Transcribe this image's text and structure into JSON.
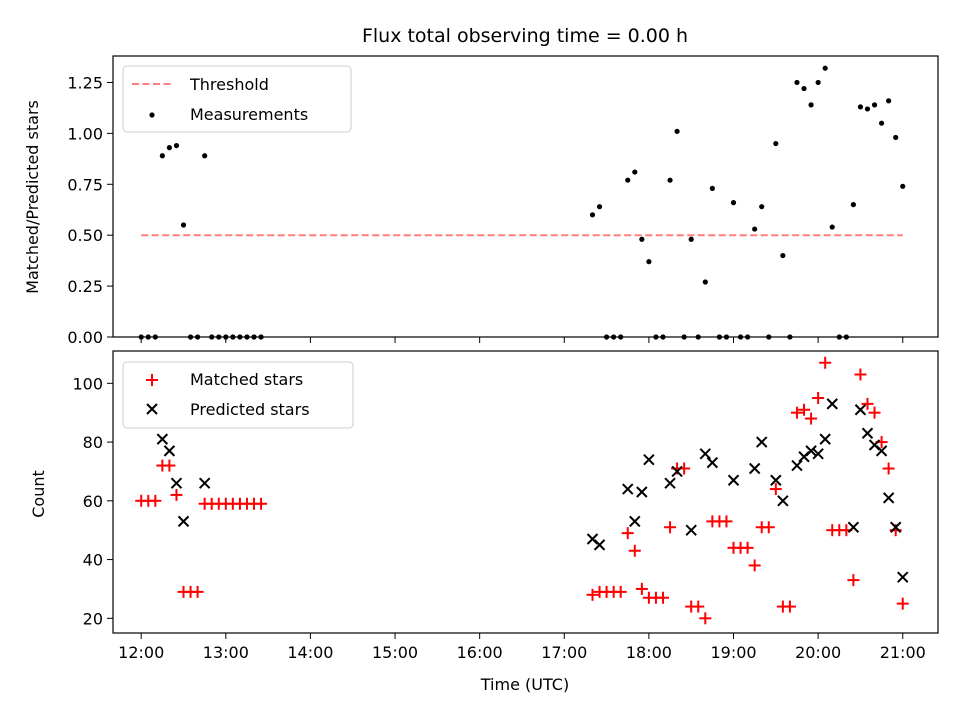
{
  "chart_data": [
    {
      "type": "scatter",
      "title": "Flux total observing time = 0.00 h",
      "xlabel": "",
      "ylabel": "Matched/Predicted stars",
      "xlim": [
        "11:40",
        "21:25"
      ],
      "ylim": [
        0,
        1.38
      ],
      "yticks": [
        "0.00",
        "0.25",
        "0.50",
        "0.75",
        "1.00",
        "1.25"
      ],
      "legend": {
        "placement": "top-left",
        "entries": [
          "Threshold",
          "Measurements"
        ]
      },
      "threshold": {
        "name": "Threshold",
        "value": 0.5,
        "x": [
          "12:00",
          "21:00"
        ],
        "color": "#ff7f7f",
        "style": "dashed"
      },
      "series": [
        {
          "name": "Measurements",
          "color": "#000000",
          "marker": "dot",
          "points": [
            [
              "12:00",
              0
            ],
            [
              "12:05",
              0
            ],
            [
              "12:10",
              0
            ],
            [
              "12:15",
              0.89
            ],
            [
              "12:20",
              0.93
            ],
            [
              "12:25",
              0.94
            ],
            [
              "12:30",
              0.55
            ],
            [
              "12:35",
              0
            ],
            [
              "12:40",
              0
            ],
            [
              "12:45",
              0.89
            ],
            [
              "12:50",
              0
            ],
            [
              "12:55",
              0
            ],
            [
              "13:00",
              0
            ],
            [
              "13:05",
              0
            ],
            [
              "13:10",
              0
            ],
            [
              "13:15",
              0
            ],
            [
              "13:20",
              0
            ],
            [
              "13:25",
              0
            ],
            [
              "17:20",
              0.6
            ],
            [
              "17:25",
              0.64
            ],
            [
              "17:30",
              0
            ],
            [
              "17:35",
              0
            ],
            [
              "17:40",
              0
            ],
            [
              "17:45",
              0.77
            ],
            [
              "17:50",
              0.81
            ],
            [
              "17:55",
              0.48
            ],
            [
              "18:00",
              0.37
            ],
            [
              "18:05",
              0
            ],
            [
              "18:10",
              0
            ],
            [
              "18:15",
              0.77
            ],
            [
              "18:20",
              1.01
            ],
            [
              "18:25",
              0
            ],
            [
              "18:30",
              0.48
            ],
            [
              "18:35",
              0
            ],
            [
              "18:40",
              0.27
            ],
            [
              "18:45",
              0.73
            ],
            [
              "18:50",
              0
            ],
            [
              "18:55",
              0
            ],
            [
              "19:00",
              0.66
            ],
            [
              "19:05",
              0
            ],
            [
              "19:10",
              0
            ],
            [
              "19:15",
              0.53
            ],
            [
              "19:20",
              0.64
            ],
            [
              "19:25",
              0
            ],
            [
              "19:30",
              0.95
            ],
            [
              "19:35",
              0.4
            ],
            [
              "19:40",
              0
            ],
            [
              "19:45",
              1.25
            ],
            [
              "19:50",
              1.22
            ],
            [
              "19:55",
              1.14
            ],
            [
              "20:00",
              1.25
            ],
            [
              "20:05",
              1.32
            ],
            [
              "20:10",
              0.54
            ],
            [
              "20:15",
              0
            ],
            [
              "20:20",
              0
            ],
            [
              "20:25",
              0.65
            ],
            [
              "20:30",
              1.13
            ],
            [
              "20:35",
              1.12
            ],
            [
              "20:40",
              1.14
            ],
            [
              "20:45",
              1.05
            ],
            [
              "20:50",
              1.16
            ],
            [
              "20:55",
              0.98
            ],
            [
              "21:00",
              0.74
            ]
          ]
        }
      ]
    },
    {
      "type": "scatter",
      "title": "",
      "xlabel": "Time (UTC)",
      "ylabel": "Count",
      "xlim": [
        "11:40",
        "21:25"
      ],
      "ylim": [
        15,
        111
      ],
      "xticks": [
        "12:00",
        "13:00",
        "14:00",
        "15:00",
        "16:00",
        "17:00",
        "18:00",
        "19:00",
        "20:00",
        "21:00"
      ],
      "yticks": [
        "20",
        "40",
        "60",
        "80",
        "100"
      ],
      "legend": {
        "placement": "top-left",
        "entries": [
          "Matched stars",
          "Predicted stars"
        ]
      },
      "series": [
        {
          "name": "Matched stars",
          "color": "#ff0000",
          "marker": "plus",
          "points": [
            [
              "12:00",
              60
            ],
            [
              "12:05",
              60
            ],
            [
              "12:10",
              60
            ],
            [
              "12:15",
              72
            ],
            [
              "12:20",
              72
            ],
            [
              "12:25",
              62
            ],
            [
              "12:30",
              29
            ],
            [
              "12:35",
              29
            ],
            [
              "12:40",
              29
            ],
            [
              "12:45",
              59
            ],
            [
              "12:50",
              59
            ],
            [
              "12:55",
              59
            ],
            [
              "13:00",
              59
            ],
            [
              "13:05",
              59
            ],
            [
              "13:10",
              59
            ],
            [
              "13:15",
              59
            ],
            [
              "13:20",
              59
            ],
            [
              "13:25",
              59
            ],
            [
              "17:20",
              28
            ],
            [
              "17:25",
              29
            ],
            [
              "17:30",
              29
            ],
            [
              "17:35",
              29
            ],
            [
              "17:40",
              29
            ],
            [
              "17:45",
              49
            ],
            [
              "17:50",
              43
            ],
            [
              "17:55",
              30
            ],
            [
              "18:00",
              27
            ],
            [
              "18:05",
              27
            ],
            [
              "18:10",
              27
            ],
            [
              "18:15",
              51
            ],
            [
              "18:20",
              71
            ],
            [
              "18:25",
              71
            ],
            [
              "18:30",
              24
            ],
            [
              "18:35",
              24
            ],
            [
              "18:40",
              20
            ],
            [
              "18:45",
              53
            ],
            [
              "18:50",
              53
            ],
            [
              "18:55",
              53
            ],
            [
              "19:00",
              44
            ],
            [
              "19:05",
              44
            ],
            [
              "19:10",
              44
            ],
            [
              "19:15",
              38
            ],
            [
              "19:20",
              51
            ],
            [
              "19:25",
              51
            ],
            [
              "19:30",
              64
            ],
            [
              "19:35",
              24
            ],
            [
              "19:40",
              24
            ],
            [
              "19:45",
              90
            ],
            [
              "19:50",
              91
            ],
            [
              "19:55",
              88
            ],
            [
              "20:00",
              95
            ],
            [
              "20:05",
              107
            ],
            [
              "20:10",
              50
            ],
            [
              "20:15",
              50
            ],
            [
              "20:20",
              50
            ],
            [
              "20:25",
              33
            ],
            [
              "20:30",
              103
            ],
            [
              "20:35",
              93
            ],
            [
              "20:40",
              90
            ],
            [
              "20:45",
              80
            ],
            [
              "20:50",
              71
            ],
            [
              "20:55",
              50
            ],
            [
              "21:00",
              25
            ]
          ]
        },
        {
          "name": "Predicted stars",
          "color": "#000000",
          "marker": "x",
          "points": [
            [
              "12:15",
              81
            ],
            [
              "12:20",
              77
            ],
            [
              "12:25",
              66
            ],
            [
              "12:30",
              53
            ],
            [
              "12:45",
              66
            ],
            [
              "17:20",
              47
            ],
            [
              "17:25",
              45
            ],
            [
              "17:45",
              64
            ],
            [
              "17:50",
              53
            ],
            [
              "17:55",
              63
            ],
            [
              "18:00",
              74
            ],
            [
              "18:15",
              66
            ],
            [
              "18:20",
              70
            ],
            [
              "18:30",
              50
            ],
            [
              "18:40",
              76
            ],
            [
              "18:45",
              73
            ],
            [
              "19:00",
              67
            ],
            [
              "19:15",
              71
            ],
            [
              "19:20",
              80
            ],
            [
              "19:30",
              67
            ],
            [
              "19:35",
              60
            ],
            [
              "19:45",
              72
            ],
            [
              "19:50",
              75
            ],
            [
              "19:55",
              77
            ],
            [
              "20:00",
              76
            ],
            [
              "20:05",
              81
            ],
            [
              "20:10",
              93
            ],
            [
              "20:25",
              51
            ],
            [
              "20:30",
              91
            ],
            [
              "20:35",
              83
            ],
            [
              "20:40",
              79
            ],
            [
              "20:45",
              77
            ],
            [
              "20:50",
              61
            ],
            [
              "20:55",
              51
            ],
            [
              "21:00",
              34
            ]
          ]
        }
      ]
    }
  ]
}
